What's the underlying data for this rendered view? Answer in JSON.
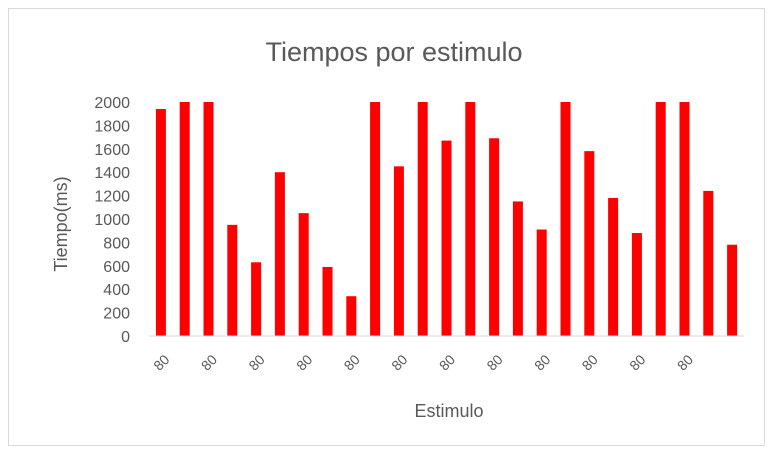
{
  "chart_data": {
    "type": "bar",
    "title": "Tiempos por estimulo",
    "xlabel": "Estimulo",
    "ylabel": "Tiempo(ms)",
    "ylim": [
      0,
      2000
    ],
    "yticks": [
      0,
      200,
      400,
      600,
      800,
      1000,
      1200,
      1400,
      1600,
      1800,
      2000
    ],
    "grid": false,
    "legend": "none",
    "bar_color": "#ff0000",
    "categories": [
      "80",
      "80",
      "80",
      "80",
      "80",
      "80",
      "80",
      "80",
      "80",
      "80",
      "80",
      "80",
      "80",
      "80",
      "80",
      "80",
      "80",
      "80",
      "80",
      "80",
      "80",
      "80",
      "80",
      "80",
      "80"
    ],
    "tick_labels_shown": [
      "80",
      "80",
      "80",
      "80",
      "80",
      "80",
      "80",
      "80",
      "80",
      "80",
      "80",
      "80"
    ],
    "values": [
      1940,
      2000,
      2000,
      950,
      630,
      1400,
      1050,
      590,
      340,
      2000,
      1450,
      2000,
      1670,
      2000,
      1690,
      1150,
      910,
      2000,
      1580,
      1180,
      880,
      2000,
      2000,
      1240,
      780
    ]
  }
}
